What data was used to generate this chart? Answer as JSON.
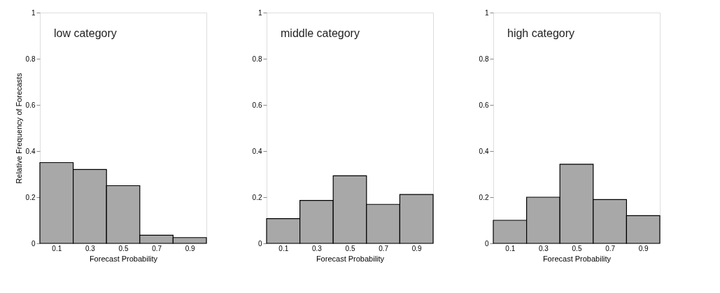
{
  "chart_data": [
    {
      "type": "histogram",
      "annotations": [
        "low category"
      ],
      "xlabel": "Forecast Probability",
      "ylabel": "Relative Frequency of Forecasts",
      "bins": [
        0,
        0.2,
        0.4,
        0.6,
        0.8,
        1.0
      ],
      "values": [
        0.35,
        0.32,
        0.25,
        0.035,
        0.025
      ],
      "color": "#a8a8a8",
      "xlim": [
        0,
        1
      ],
      "xticks": [
        0.1,
        0.3,
        0.5,
        0.7,
        0.9
      ],
      "ylim": [
        0,
        1
      ],
      "yticks": [
        0,
        0.2,
        0.4,
        0.6,
        0.8,
        1
      ],
      "grid": false
    },
    {
      "type": "histogram",
      "annotations": [
        "middle category"
      ],
      "xlabel": "Forecast Probability",
      "bins": [
        0,
        0.2,
        0.4,
        0.6,
        0.8,
        1.0
      ],
      "values": [
        0.107,
        0.186,
        0.293,
        0.169,
        0.212
      ],
      "color": "#a8a8a8",
      "xlim": [
        0,
        1
      ],
      "xticks": [
        0.1,
        0.3,
        0.5,
        0.7,
        0.9
      ],
      "ylim": [
        0,
        1
      ],
      "yticks": [
        0,
        0.2,
        0.4,
        0.6,
        0.8,
        1
      ],
      "grid": false
    },
    {
      "type": "histogram",
      "annotations": [
        "high category"
      ],
      "xlabel": "Forecast Probability",
      "bins": [
        0,
        0.2,
        0.4,
        0.6,
        0.8,
        1.0
      ],
      "values": [
        0.1,
        0.2,
        0.343,
        0.19,
        0.12
      ],
      "color": "#a8a8a8",
      "xlim": [
        0,
        1
      ],
      "xticks": [
        0.1,
        0.3,
        0.5,
        0.7,
        0.9
      ],
      "ylim": [
        0,
        1
      ],
      "yticks": [
        0,
        0.2,
        0.4,
        0.6,
        0.8,
        1
      ],
      "grid": false
    }
  ]
}
